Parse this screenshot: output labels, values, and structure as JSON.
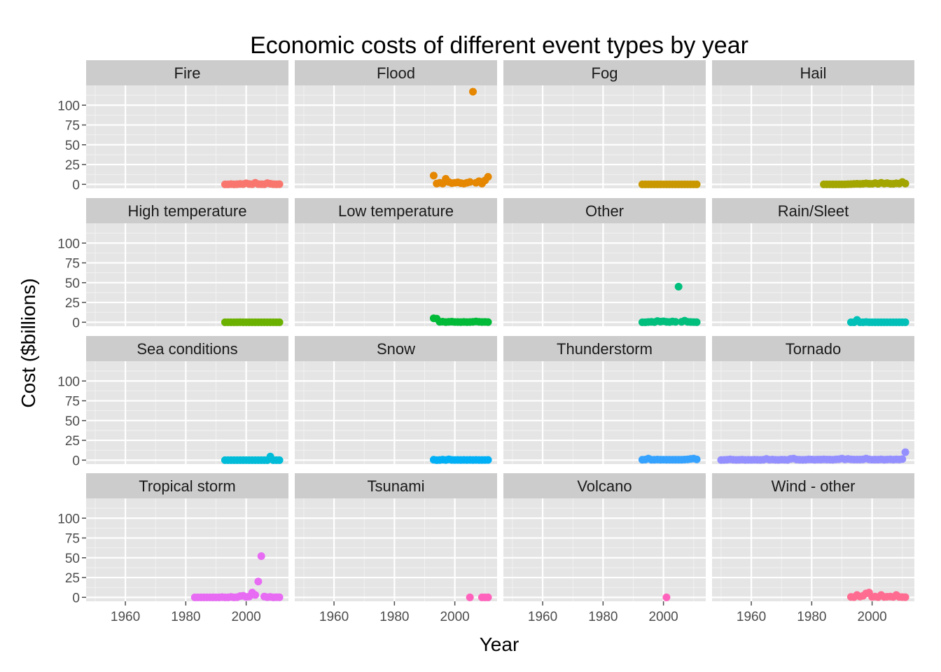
{
  "chart_data": {
    "type": "scatter",
    "layout": "facet-grid",
    "title": "Economic costs of different event types by year",
    "xlabel": "Year",
    "ylabel": "Cost ($billions)",
    "xlim": [
      1947,
      2014
    ],
    "ylim": [
      -5,
      125
    ],
    "x_ticks": [
      1960,
      1980,
      2000
    ],
    "y_ticks": [
      0,
      25,
      50,
      75,
      100
    ],
    "grid": true,
    "legend": "none",
    "panels": [
      {
        "name": "Fire",
        "color": "#F8766D",
        "x": [
          1993,
          1994,
          1995,
          1996,
          1997,
          1998,
          1999,
          2000,
          2001,
          2002,
          2003,
          2004,
          2005,
          2006,
          2007,
          2008,
          2009,
          2010,
          2011
        ],
        "y": [
          0,
          0,
          0.3,
          0,
          0.2,
          0.5,
          0.3,
          1.3,
          0.4,
          0.2,
          2,
          0.3,
          0.2,
          0.1,
          1.5,
          0.8,
          0.2,
          0.1,
          0.2
        ]
      },
      {
        "name": "Flood",
        "color": "#E58700",
        "x": [
          1993,
          1994,
          1995,
          1996,
          1997,
          1998,
          1999,
          2000,
          2001,
          2002,
          2003,
          2004,
          2005,
          2006,
          2007,
          2008,
          2009,
          2010,
          2011
        ],
        "y": [
          11,
          1,
          2,
          1,
          7,
          3,
          1.5,
          2,
          2.5,
          1.5,
          1,
          2,
          3,
          117,
          2,
          4,
          1,
          5,
          9.5
        ]
      },
      {
        "name": "Fog",
        "color": "#C99800",
        "x": [
          1993,
          1994,
          1995,
          1996,
          1997,
          1998,
          1999,
          2000,
          2001,
          2002,
          2003,
          2004,
          2005,
          2006,
          2007,
          2008,
          2009,
          2010,
          2011
        ],
        "y": [
          0,
          0,
          0,
          0,
          0,
          0,
          0,
          0,
          0,
          0,
          0,
          0,
          0,
          0,
          0,
          0,
          0,
          0,
          0
        ]
      },
      {
        "name": "Hail",
        "color": "#A3A500",
        "x": [
          1984,
          1985,
          1986,
          1987,
          1988,
          1989,
          1990,
          1991,
          1992,
          1993,
          1994,
          1995,
          1996,
          1997,
          1998,
          1999,
          2000,
          2001,
          2002,
          2003,
          2004,
          2005,
          2006,
          2007,
          2008,
          2009,
          2010,
          2011
        ],
        "y": [
          0,
          0,
          0,
          0,
          0,
          0,
          0,
          0,
          0.2,
          0.3,
          0.5,
          0.7,
          0.5,
          0.8,
          1.2,
          0.8,
          0.6,
          1.5,
          0.7,
          2,
          1,
          1.5,
          0.8,
          0.7,
          1.3,
          1,
          3,
          1
        ]
      },
      {
        "name": "High temperature",
        "color": "#6BB100",
        "x": [
          1993,
          1994,
          1995,
          1996,
          1997,
          1998,
          1999,
          2000,
          2001,
          2002,
          2003,
          2004,
          2005,
          2006,
          2007,
          2008,
          2009,
          2010,
          2011
        ],
        "y": [
          0,
          0,
          0,
          0,
          0,
          0.1,
          0,
          0,
          0,
          0,
          0,
          0,
          0,
          0,
          0,
          0,
          0,
          0,
          0
        ]
      },
      {
        "name": "Low temperature",
        "color": "#00BA38",
        "x": [
          1993,
          1994,
          1995,
          1996,
          1997,
          1998,
          1999,
          2000,
          2001,
          2002,
          2003,
          2004,
          2005,
          2006,
          2007,
          2008,
          2009,
          2010,
          2011
        ],
        "y": [
          5,
          4.5,
          0.5,
          0.8,
          0.2,
          0.5,
          0.8,
          0.3,
          0.3,
          0.2,
          0.4,
          0.2,
          0.3,
          0.5,
          1,
          0.5,
          0.3,
          0.4,
          0.2
        ]
      },
      {
        "name": "Other",
        "color": "#00BF7D",
        "x": [
          1993,
          1994,
          1995,
          1996,
          1997,
          1998,
          1999,
          2000,
          2001,
          2002,
          2003,
          2004,
          2005,
          2006,
          2007,
          2008,
          2009,
          2010,
          2011
        ],
        "y": [
          0,
          0,
          0.3,
          0.5,
          0.2,
          1.5,
          0.8,
          1.2,
          0.5,
          0.3,
          1,
          0.5,
          45,
          0.5,
          2,
          0.5,
          0.3,
          0.2,
          0.1
        ]
      },
      {
        "name": "Rain/Sleet",
        "color": "#00C0B8",
        "x": [
          1993,
          1994,
          1995,
          1996,
          1997,
          1998,
          1999,
          2000,
          2001,
          2002,
          2003,
          2004,
          2005,
          2006,
          2007,
          2008,
          2009,
          2010,
          2011
        ],
        "y": [
          0,
          0,
          3,
          0,
          0,
          0.3,
          0,
          0,
          0,
          0,
          0,
          0,
          0,
          0,
          0,
          0,
          0,
          0,
          0
        ]
      },
      {
        "name": "Sea conditions",
        "color": "#00BCD8",
        "x": [
          1993,
          1994,
          1995,
          1996,
          1997,
          1998,
          1999,
          2000,
          2001,
          2002,
          2003,
          2004,
          2005,
          2006,
          2007,
          2008,
          2009,
          2010,
          2011
        ],
        "y": [
          0,
          0,
          0,
          0,
          0,
          0,
          0,
          0,
          0,
          0,
          0,
          0,
          0,
          0,
          0,
          4.5,
          0,
          0,
          0
        ]
      },
      {
        "name": "Snow",
        "color": "#00B0F6",
        "x": [
          1993,
          1994,
          1995,
          1996,
          1997,
          1998,
          1999,
          2000,
          2001,
          2002,
          2003,
          2004,
          2005,
          2006,
          2007,
          2008,
          2009,
          2010,
          2011
        ],
        "y": [
          0.5,
          0,
          0.2,
          0.6,
          0.2,
          1,
          0.3,
          0.2,
          0.3,
          0.2,
          0.3,
          0.2,
          0.3,
          0.2,
          0.3,
          0.2,
          0.2,
          0.2,
          0.3
        ]
      },
      {
        "name": "Thunderstorm",
        "color": "#35A2FF",
        "x": [
          1993,
          1994,
          1995,
          1996,
          1997,
          1998,
          1999,
          2000,
          2001,
          2002,
          2003,
          2004,
          2005,
          2006,
          2007,
          2008,
          2009,
          2010,
          2011
        ],
        "y": [
          0.5,
          0.8,
          2,
          0.5,
          0.5,
          0.8,
          0.5,
          0.5,
          0.5,
          0.5,
          0.5,
          0.5,
          0.5,
          0.5,
          0.8,
          1,
          1.5,
          2,
          1
        ]
      },
      {
        "name": "Tornado",
        "color": "#9590FF",
        "x": [
          1950,
          1951,
          1952,
          1953,
          1954,
          1955,
          1956,
          1957,
          1958,
          1959,
          1960,
          1961,
          1962,
          1963,
          1964,
          1965,
          1966,
          1967,
          1968,
          1969,
          1970,
          1971,
          1972,
          1973,
          1974,
          1975,
          1976,
          1977,
          1978,
          1979,
          1980,
          1981,
          1982,
          1983,
          1984,
          1985,
          1986,
          1987,
          1988,
          1989,
          1990,
          1991,
          1992,
          1993,
          1994,
          1995,
          1996,
          1997,
          1998,
          1999,
          2000,
          2001,
          2002,
          2003,
          2004,
          2005,
          2006,
          2007,
          2008,
          2009,
          2010,
          2011
        ],
        "y": [
          0.2,
          0.3,
          0.5,
          1,
          0.5,
          0.3,
          0.4,
          0.6,
          0.3,
          0.4,
          0.3,
          0.5,
          0.4,
          0.3,
          0.5,
          1.5,
          0.5,
          0.8,
          0.4,
          0.3,
          0.6,
          0.5,
          0.3,
          1.5,
          2,
          0.8,
          0.5,
          0.4,
          0.5,
          1,
          0.8,
          0.5,
          0.8,
          0.7,
          1,
          0.8,
          0.7,
          0.5,
          1,
          1.2,
          2,
          1,
          1.5,
          1,
          0.8,
          0.8,
          0.8,
          1,
          2,
          1,
          0.5,
          0.7,
          0.6,
          1,
          0.5,
          0.8,
          1,
          0.6,
          1,
          0.8,
          1.3,
          10
        ]
      },
      {
        "name": "Tropical storm",
        "color": "#E76BF3",
        "x": [
          1983,
          1984,
          1985,
          1986,
          1987,
          1988,
          1989,
          1990,
          1991,
          1992,
          1993,
          1994,
          1995,
          1996,
          1997,
          1998,
          1999,
          2000,
          2001,
          2002,
          2003,
          2004,
          2005,
          2006,
          2007,
          2008,
          2009,
          2010,
          2011
        ],
        "y": [
          0,
          0,
          0,
          0,
          0,
          0,
          0,
          0,
          0,
          0.3,
          0,
          0,
          0.5,
          0,
          0.2,
          1.5,
          2,
          0.5,
          1,
          6,
          3,
          20,
          52,
          1,
          0.2,
          0.5,
          0,
          0.2,
          0.1
        ]
      },
      {
        "name": "Tsunami",
        "color": "#FF62BC",
        "x": [
          2005,
          2009,
          2010,
          2011
        ],
        "y": [
          0,
          0,
          0,
          0
        ]
      },
      {
        "name": "Volcano",
        "color": "#FF62BC",
        "x": [
          2001
        ],
        "y": [
          0
        ]
      },
      {
        "name": "Wind - other",
        "color": "#FF6C91",
        "x": [
          1993,
          1994,
          1995,
          1996,
          1997,
          1998,
          1999,
          2000,
          2001,
          2002,
          2003,
          2004,
          2005,
          2006,
          2007,
          2008,
          2009,
          2010,
          2011
        ],
        "y": [
          0.5,
          0.3,
          3,
          1,
          2,
          5,
          6,
          0.5,
          1,
          0.3,
          3,
          0.5,
          0.8,
          1,
          0.5,
          3,
          0.5,
          0.3,
          0.2
        ]
      }
    ]
  }
}
